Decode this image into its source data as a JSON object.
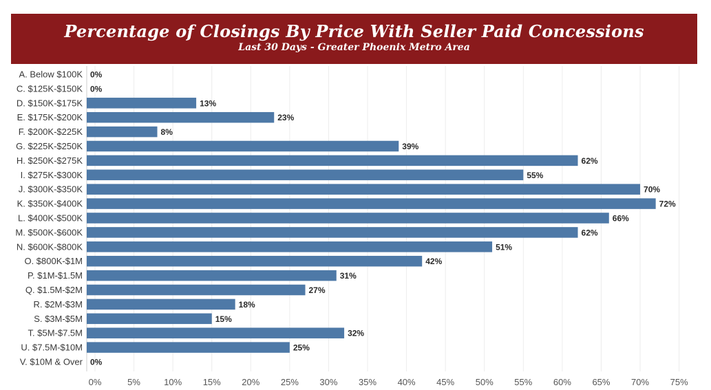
{
  "chart_data": {
    "type": "bar",
    "orientation": "horizontal",
    "title": "Percentage of Closings By Price With Seller Paid Concessions",
    "subtitle": "Last 30 Days - Greater Phoenix Metro Area",
    "categories": [
      "A. Below $100K",
      "C. $125K-$150K",
      "D. $150K-$175K",
      "E. $175K-$200K",
      "F. $200K-$225K",
      "G. $225K-$250K",
      "H. $250K-$275K",
      "I. $275K-$300K",
      "J. $300K-$350K",
      "K. $350K-$400K",
      "L. $400K-$500K",
      "M. $500K-$600K",
      "N. $600K-$800K",
      "O. $800K-$1M",
      "P. $1M-$1.5M",
      "Q. $1.5M-$2M",
      "R. $2M-$3M",
      "S. $3M-$5M",
      "T. $5M-$7.5M",
      "U. $7.5M-$10M",
      "V. $10M & Over"
    ],
    "values": [
      0,
      0,
      13,
      23,
      8,
      39,
      62,
      55,
      70,
      72,
      66,
      62,
      51,
      42,
      31,
      27,
      18,
      15,
      32,
      25,
      0
    ],
    "value_labels": [
      "0%",
      "0%",
      "13%",
      "23%",
      "8%",
      "39%",
      "62%",
      "55%",
      "70%",
      "72%",
      "66%",
      "62%",
      "51%",
      "42%",
      "31%",
      "27%",
      "18%",
      "15%",
      "32%",
      "25%",
      "0%"
    ],
    "x_ticks": [
      0,
      5,
      10,
      15,
      20,
      25,
      30,
      35,
      40,
      45,
      50,
      55,
      60,
      65,
      70,
      75
    ],
    "x_tick_labels": [
      "0%",
      "5%",
      "10%",
      "15%",
      "20%",
      "25%",
      "30%",
      "35%",
      "40%",
      "45%",
      "50%",
      "55%",
      "60%",
      "65%",
      "70%",
      "75%"
    ],
    "xlim": [
      0,
      78
    ],
    "grid": "vertical",
    "bar_color": "#4e79a7",
    "banner_color": "#8a1a1c"
  }
}
